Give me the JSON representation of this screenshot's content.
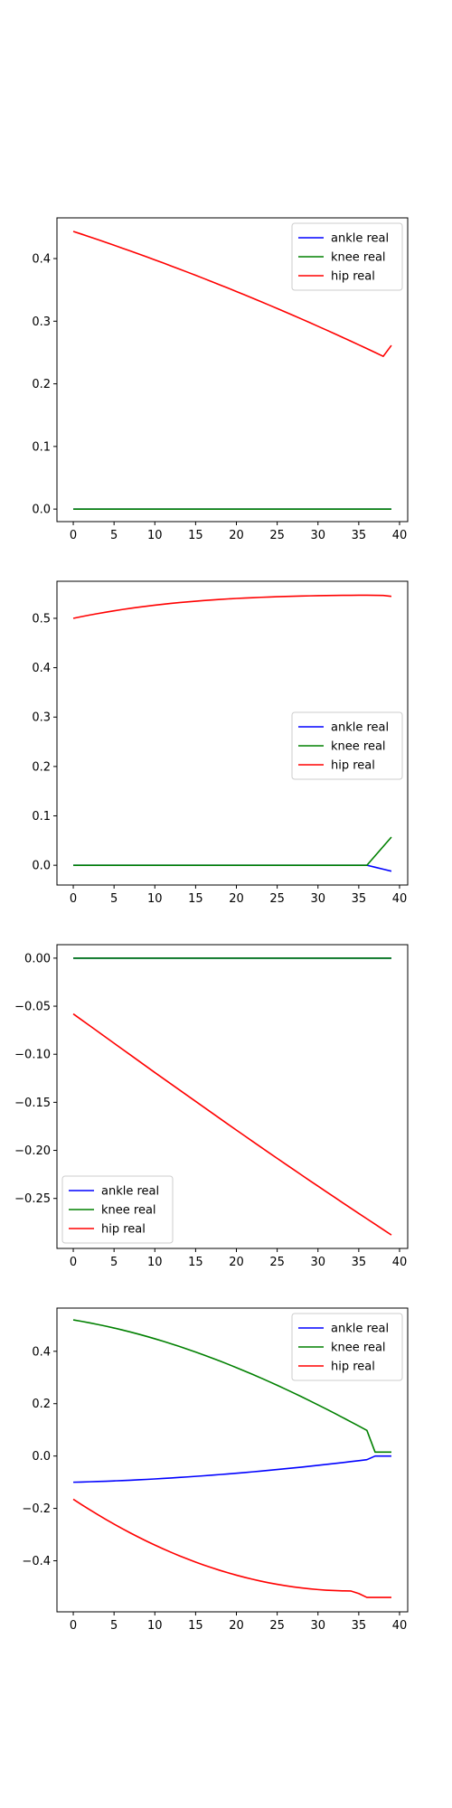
{
  "chart_data": [
    {
      "type": "line",
      "x": [
        0,
        1,
        2,
        3,
        4,
        5,
        6,
        7,
        8,
        9,
        10,
        11,
        12,
        13,
        14,
        15,
        16,
        17,
        18,
        19,
        20,
        21,
        22,
        23,
        24,
        25,
        26,
        27,
        28,
        29,
        30,
        31,
        32,
        33,
        34,
        35,
        36,
        37,
        38,
        39
      ],
      "series": [
        {
          "name": "ankle real",
          "color": "#0000ff",
          "values": [
            0,
            0,
            0,
            0,
            0,
            0,
            0,
            0,
            0,
            0,
            0,
            0,
            0,
            0,
            0,
            0,
            0,
            0,
            0,
            0,
            0,
            0,
            0,
            0,
            0,
            0,
            0,
            0,
            0,
            0,
            0,
            0,
            0,
            0,
            0,
            0,
            0,
            0,
            0,
            0
          ]
        },
        {
          "name": "knee real",
          "color": "#008000",
          "values": [
            0,
            0,
            0,
            0,
            0,
            0,
            0,
            0,
            0,
            0,
            0,
            0,
            0,
            0,
            0,
            0,
            0,
            0,
            0,
            0,
            0,
            0,
            0,
            0,
            0,
            0,
            0,
            0,
            0,
            0,
            0,
            0,
            0,
            0,
            0,
            0,
            0,
            0,
            0,
            0
          ]
        },
        {
          "name": "hip real",
          "color": "#ff0000",
          "values": [
            0.4434,
            0.4391,
            0.4347,
            0.4303,
            0.4258,
            0.4213,
            0.4167,
            0.4121,
            0.4074,
            0.4027,
            0.3979,
            0.3931,
            0.3882,
            0.3833,
            0.3783,
            0.3733,
            0.3682,
            0.3631,
            0.3579,
            0.3527,
            0.3474,
            0.3421,
            0.3367,
            0.3313,
            0.3258,
            0.3203,
            0.3147,
            0.3091,
            0.3034,
            0.2977,
            0.2919,
            0.2861,
            0.2802,
            0.2743,
            0.2683,
            0.2623,
            0.2562,
            0.2501,
            0.2439,
            0.2614
          ]
        }
      ],
      "xlim": [
        -2,
        41
      ],
      "ylim": [
        -0.02,
        0.465
      ],
      "xticks": [
        0,
        5,
        10,
        15,
        20,
        25,
        30,
        35,
        40
      ],
      "yticks": [
        0.0,
        0.1,
        0.2,
        0.3,
        0.4
      ],
      "yticklabels": [
        "0.0",
        "0.1",
        "0.2",
        "0.3",
        "0.4"
      ],
      "legend": "upper right",
      "grid": false
    },
    {
      "type": "line",
      "x": [
        0,
        1,
        2,
        3,
        4,
        5,
        6,
        7,
        8,
        9,
        10,
        11,
        12,
        13,
        14,
        15,
        16,
        17,
        18,
        19,
        20,
        21,
        22,
        23,
        24,
        25,
        26,
        27,
        28,
        29,
        30,
        31,
        32,
        33,
        34,
        35,
        36,
        37,
        38,
        39
      ],
      "series": [
        {
          "name": "ankle real",
          "color": "#0000ff",
          "values": [
            0,
            0,
            0,
            0,
            0,
            0,
            0,
            0,
            0,
            0,
            0,
            0,
            0,
            0,
            0,
            0,
            0,
            0,
            0,
            0,
            0,
            0,
            0,
            0,
            0,
            0,
            0,
            0,
            0,
            0,
            0,
            0,
            0,
            0,
            0,
            0,
            0,
            -0.004,
            -0.008,
            -0.012
          ]
        },
        {
          "name": "knee real",
          "color": "#008000",
          "values": [
            0,
            0,
            0,
            0,
            0,
            0,
            0,
            0,
            0,
            0,
            0,
            0,
            0,
            0,
            0,
            0,
            0,
            0,
            0,
            0,
            0,
            0,
            0,
            0,
            0,
            0,
            0,
            0,
            0,
            0,
            0,
            0,
            0,
            0,
            0,
            0,
            0,
            0.019,
            0.038,
            0.057
          ]
        },
        {
          "name": "hip real",
          "color": "#ff0000",
          "values": [
            0.5,
            0.5034,
            0.5066,
            0.5096,
            0.5125,
            0.5152,
            0.5178,
            0.5202,
            0.5225,
            0.5246,
            0.5266,
            0.5285,
            0.5302,
            0.5318,
            0.5333,
            0.5347,
            0.536,
            0.5372,
            0.5383,
            0.5393,
            0.5402,
            0.541,
            0.5418,
            0.5425,
            0.5431,
            0.5437,
            0.5442,
            0.5447,
            0.5451,
            0.5455,
            0.5458,
            0.5461,
            0.5463,
            0.5465,
            0.5466,
            0.5467,
            0.5467,
            0.5466,
            0.5463,
            0.5445
          ]
        }
      ],
      "xlim": [
        -2,
        41
      ],
      "ylim": [
        -0.04,
        0.575
      ],
      "xticks": [
        0,
        5,
        10,
        15,
        20,
        25,
        30,
        35,
        40
      ],
      "yticks": [
        0.0,
        0.1,
        0.2,
        0.3,
        0.4,
        0.5
      ],
      "yticklabels": [
        "0.0",
        "0.1",
        "0.2",
        "0.3",
        "0.4",
        "0.5"
      ],
      "legend": "center right",
      "grid": false
    },
    {
      "type": "line",
      "x": [
        0,
        1,
        2,
        3,
        4,
        5,
        6,
        7,
        8,
        9,
        10,
        11,
        12,
        13,
        14,
        15,
        16,
        17,
        18,
        19,
        20,
        21,
        22,
        23,
        24,
        25,
        26,
        27,
        28,
        29,
        30,
        31,
        32,
        33,
        34,
        35,
        36,
        37,
        38,
        39
      ],
      "series": [
        {
          "name": "ankle real",
          "color": "#0000ff",
          "values": [
            0,
            0,
            0,
            0,
            0,
            0,
            0,
            0,
            0,
            0,
            0,
            0,
            0,
            0,
            0,
            0,
            0,
            0,
            0,
            0,
            0,
            0,
            0,
            0,
            0,
            0,
            0,
            0,
            0,
            0,
            0,
            0,
            0,
            0,
            0,
            0,
            0,
            0,
            0,
            0
          ]
        },
        {
          "name": "knee real",
          "color": "#008000",
          "values": [
            0,
            0,
            0,
            0,
            0,
            0,
            0,
            0,
            0,
            0,
            0,
            0,
            0,
            0,
            0,
            0,
            0,
            0,
            0,
            0,
            0,
            0,
            0,
            0,
            0,
            0,
            0,
            0,
            0,
            0,
            0,
            0,
            0,
            0,
            0,
            0,
            0,
            0,
            0,
            0
          ]
        },
        {
          "name": "hip real",
          "color": "#ff0000",
          "values": [
            -0.058,
            -0.0641,
            -0.0702,
            -0.0763,
            -0.0824,
            -0.0885,
            -0.0946,
            -0.1007,
            -0.1068,
            -0.1129,
            -0.119,
            -0.125,
            -0.131,
            -0.137,
            -0.143,
            -0.149,
            -0.155,
            -0.161,
            -0.167,
            -0.173,
            -0.1789,
            -0.1848,
            -0.1907,
            -0.1966,
            -0.2025,
            -0.2083,
            -0.2141,
            -0.2199,
            -0.2257,
            -0.2315,
            -0.2372,
            -0.2429,
            -0.2486,
            -0.2543,
            -0.26,
            -0.2656,
            -0.2712,
            -0.2768,
            -0.2824,
            -0.288
          ]
        }
      ],
      "xlim": [
        -2,
        41
      ],
      "ylim": [
        -0.302,
        0.014
      ],
      "xticks": [
        0,
        5,
        10,
        15,
        20,
        25,
        30,
        35,
        40
      ],
      "yticks": [
        0.0,
        -0.05,
        -0.1,
        -0.15,
        -0.2,
        -0.25
      ],
      "yticklabels": [
        "0.00",
        "−0.05",
        "−0.10",
        "−0.15",
        "−0.20",
        "−0.25"
      ],
      "legend": "lower left",
      "grid": false
    },
    {
      "type": "line",
      "x": [
        0,
        1,
        2,
        3,
        4,
        5,
        6,
        7,
        8,
        9,
        10,
        11,
        12,
        13,
        14,
        15,
        16,
        17,
        18,
        19,
        20,
        21,
        22,
        23,
        24,
        25,
        26,
        27,
        28,
        29,
        30,
        31,
        32,
        33,
        34,
        35,
        36,
        37,
        38,
        39
      ],
      "series": [
        {
          "name": "ankle real",
          "color": "#0000ff",
          "values": [
            -0.1,
            -0.0992,
            -0.0983,
            -0.0973,
            -0.0962,
            -0.095,
            -0.0937,
            -0.0923,
            -0.0908,
            -0.0892,
            -0.0875,
            -0.0857,
            -0.0838,
            -0.0818,
            -0.0797,
            -0.0776,
            -0.0754,
            -0.0731,
            -0.0707,
            -0.0682,
            -0.0656,
            -0.063,
            -0.0603,
            -0.0575,
            -0.0546,
            -0.0516,
            -0.0486,
            -0.0455,
            -0.0423,
            -0.039,
            -0.0356,
            -0.0322,
            -0.0287,
            -0.0251,
            -0.0214,
            -0.0177,
            -0.0139,
            -0.0001,
            0.0,
            0.0
          ]
        },
        {
          "name": "knee real",
          "color": "#008000",
          "values": [
            0.52,
            0.5145,
            0.5087,
            0.5025,
            0.4959,
            0.4889,
            0.4815,
            0.4737,
            0.4655,
            0.4569,
            0.4479,
            0.4385,
            0.4287,
            0.4186,
            0.4081,
            0.3972,
            0.386,
            0.3744,
            0.3625,
            0.3503,
            0.3377,
            0.3248,
            0.3116,
            0.2981,
            0.2843,
            0.2702,
            0.2558,
            0.2411,
            0.2262,
            0.211,
            0.1955,
            0.1798,
            0.1638,
            0.1476,
            0.1312,
            0.1146,
            0.0978,
            0.015,
            0.015,
            0.015
          ]
        },
        {
          "name": "hip real",
          "color": "#ff0000",
          "values": [
            -0.165,
            -0.1852,
            -0.2048,
            -0.2238,
            -0.2422,
            -0.26,
            -0.2772,
            -0.2938,
            -0.3098,
            -0.3252,
            -0.34,
            -0.3542,
            -0.3678,
            -0.3808,
            -0.3932,
            -0.405,
            -0.4162,
            -0.4268,
            -0.4368,
            -0.4462,
            -0.455,
            -0.4632,
            -0.4708,
            -0.4778,
            -0.4842,
            -0.49,
            -0.4952,
            -0.4998,
            -0.5038,
            -0.5072,
            -0.51,
            -0.5122,
            -0.5138,
            -0.5148,
            -0.5152,
            -0.525,
            -0.54,
            -0.54,
            -0.54,
            -0.54
          ]
        }
      ],
      "xlim": [
        -2,
        41
      ],
      "ylim": [
        -0.595,
        0.565
      ],
      "xticks": [
        0,
        5,
        10,
        15,
        20,
        25,
        30,
        35,
        40
      ],
      "yticks": [
        0.4,
        0.2,
        0.0,
        -0.2,
        -0.4
      ],
      "yticklabels": [
        "0.4",
        "0.2",
        "0.0",
        "−0.2",
        "−0.4"
      ],
      "legend": "upper right",
      "grid": false
    }
  ]
}
